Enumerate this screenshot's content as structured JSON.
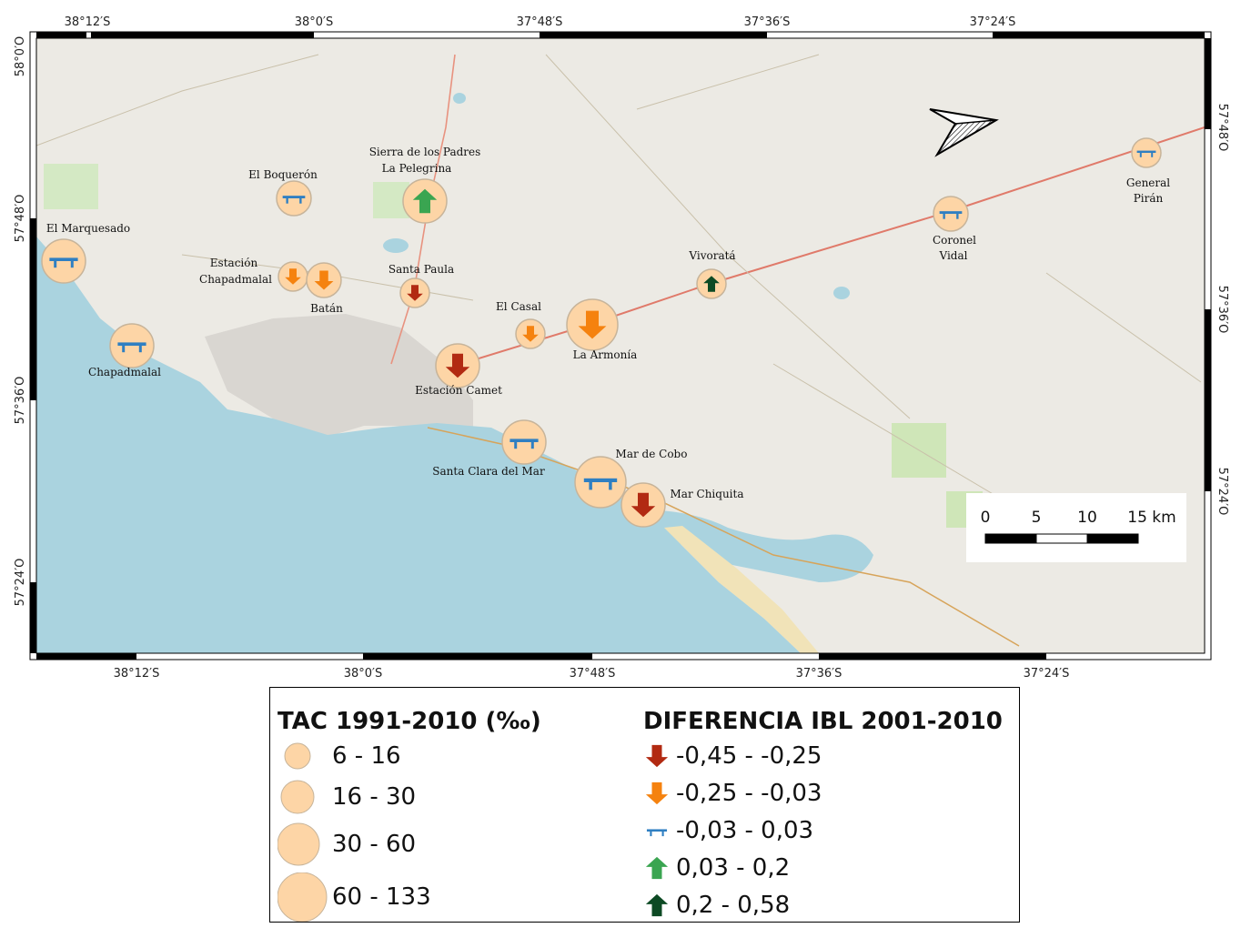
{
  "map": {
    "top_lon_labels": [
      "38°12′S",
      "38°0′S",
      "37°48′S",
      "37°36′S",
      "37°24′S"
    ],
    "bottom_lon_labels": [
      "38°12′S",
      "38°0′S",
      "37°48′S",
      "37°36′S",
      "37°24′S"
    ],
    "left_lat_labels": [
      "58°0′O",
      "57°48′O",
      "57°36′O",
      "57°24′O"
    ],
    "right_lat_labels": [
      "57°48′O",
      "57°36′O",
      "57°24′O"
    ],
    "places": [
      {
        "name": "El Marquesado",
        "tac_class": 3,
        "ibl_class": "stable"
      },
      {
        "name": "Chapadmalal",
        "tac_class": 3,
        "ibl_class": "stable"
      },
      {
        "name": "El Boquerón",
        "tac_class": 2,
        "ibl_class": "stable"
      },
      {
        "name": "Sierra de los Padres La Pelegrina",
        "tac_class": 3,
        "ibl_class": "green"
      },
      {
        "name": "Estación Chapadmalal",
        "tac_class": 1,
        "ibl_class": "orange"
      },
      {
        "name": "Batán",
        "tac_class": 2,
        "ibl_class": "orange"
      },
      {
        "name": "Santa Paula",
        "tac_class": 1,
        "ibl_class": "red"
      },
      {
        "name": "El Casal",
        "tac_class": 1,
        "ibl_class": "orange"
      },
      {
        "name": "La Armonía",
        "tac_class": 4,
        "ibl_class": "orange"
      },
      {
        "name": "Estación Camet",
        "tac_class": 3,
        "ibl_class": "red"
      },
      {
        "name": "Vivoratá",
        "tac_class": 1,
        "ibl_class": "darkgreen"
      },
      {
        "name": "Santa Clara del Mar",
        "tac_class": 3,
        "ibl_class": "stable"
      },
      {
        "name": "Mar de Cobo",
        "tac_class": 4,
        "ibl_class": "stable"
      },
      {
        "name": "Mar Chiquita",
        "tac_class": 3,
        "ibl_class": "red"
      },
      {
        "name": "Coronel Vidal",
        "tac_class": 2,
        "ibl_class": "stable"
      },
      {
        "name": "General Pirán",
        "tac_class": 1,
        "ibl_class": "stable"
      }
    ],
    "scale_bar": {
      "ticks": [
        "0",
        "5",
        "10",
        "15 km"
      ]
    }
  },
  "legend": {
    "tac_title": "TAC 1991-2010 (‰)",
    "tac_classes": [
      "6 - 16",
      "16 - 30",
      "30 - 60",
      "60 - 133"
    ],
    "ibl_title": "DIFERENCIA IBL 2001-2010",
    "ibl_classes": [
      {
        "label": "-0,45 - -0,25",
        "icon": "arrow-down-icon",
        "color": "#b22a12"
      },
      {
        "label": "-0,25 - -0,03",
        "icon": "arrow-down-icon",
        "color": "#f5820f"
      },
      {
        "label": "-0,03 - 0,03",
        "icon": "stable-icon",
        "color": "#2f7fc2"
      },
      {
        "label": "0,03 - 0,2",
        "icon": "arrow-up-icon",
        "color": "#3aa551"
      },
      {
        "label": "0,2 - 0,58",
        "icon": "arrow-up-icon",
        "color": "#0d4a24"
      }
    ]
  },
  "colors": {
    "sea": "#aad3df",
    "land": "#eceae4",
    "circle_fill": "#fdd5a6",
    "circle_stroke": "#c7b49a",
    "road": "#e07a6a"
  }
}
